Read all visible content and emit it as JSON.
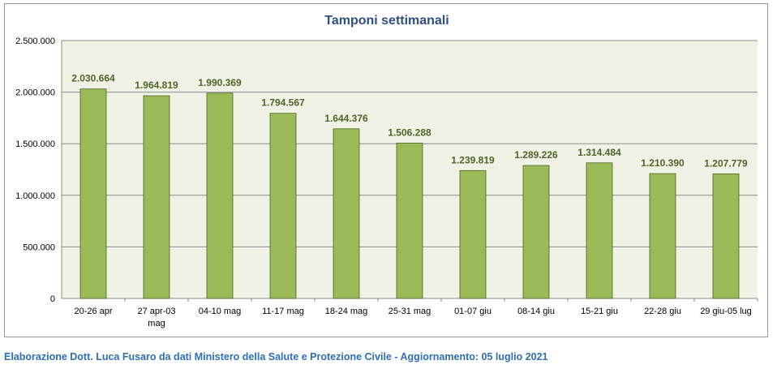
{
  "chart_data": {
    "type": "bar",
    "title": "Tamponi settimanali",
    "categories": [
      [
        "20-26 apr"
      ],
      [
        "27 apr-03",
        "mag"
      ],
      [
        "04-10 mag"
      ],
      [
        "11-17 mag"
      ],
      [
        "18-24 mag"
      ],
      [
        "25-31 mag"
      ],
      [
        "01-07 giu"
      ],
      [
        "08-14 giu"
      ],
      [
        "15-21 giu"
      ],
      [
        "22-28 giu"
      ],
      [
        "29 giu-05 lug"
      ]
    ],
    "values": [
      2030664,
      1964819,
      1990369,
      1794567,
      1644376,
      1506288,
      1239819,
      1289226,
      1314484,
      1210390,
      1207779
    ],
    "value_labels": [
      "2.030.664",
      "1.964.819",
      "1.990.369",
      "1.794.567",
      "1.644.376",
      "1.506.288",
      "1.239.819",
      "1.289.226",
      "1.314.484",
      "1.210.390",
      "1.207.779"
    ],
    "ylim": [
      0,
      2500000
    ],
    "yticks": [
      0,
      500000,
      1000000,
      1500000,
      2000000,
      2500000
    ],
    "ytick_labels": [
      "0",
      "500.000",
      "1.000.000",
      "1.500.000",
      "2.000.000",
      "2.500.000"
    ],
    "grid": true,
    "colors": {
      "bar_fill": "#9bbb59",
      "bar_stroke": "#4f6228",
      "plot_background": "#eef3e5",
      "gridline": "#8c8c8c",
      "data_label": "#4f6228",
      "title": "#2f4f7f"
    }
  },
  "footer": "Elaborazione Dott. Luca Fusaro da dati Ministero della Salute e Protezione Civile - Aggiornamento: 05 luglio 2021"
}
